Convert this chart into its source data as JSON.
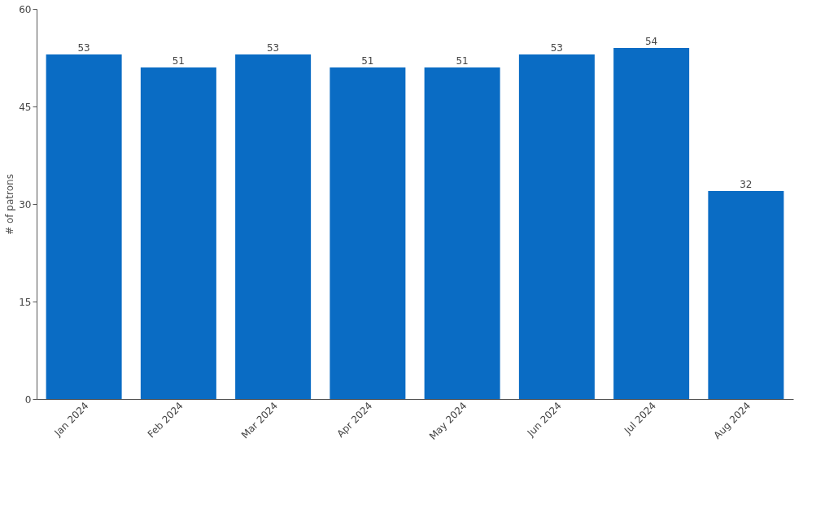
{
  "chart_data": {
    "type": "bar",
    "ylabel": "# of patrons",
    "categories": [
      "Jan 2024",
      "Feb 2024",
      "Mar 2024",
      "Apr 2024",
      "May 2024",
      "Jun 2024",
      "Jul 2024",
      "Aug 2024"
    ],
    "values": [
      53,
      51,
      53,
      51,
      51,
      53,
      54,
      32
    ],
    "color": "#0a6cc4",
    "ylim": [
      0,
      60
    ],
    "yticks": [
      0,
      15,
      30,
      45,
      60
    ],
    "grid": false,
    "data_labels": true
  }
}
